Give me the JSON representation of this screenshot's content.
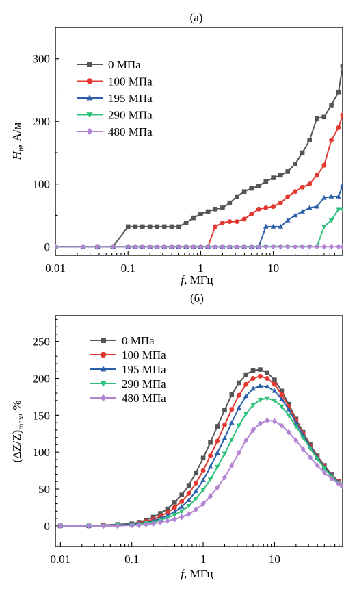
{
  "chart_data": [
    {
      "panel": "(a)",
      "type": "line",
      "xscale": "log",
      "xlim": [
        0.01,
        90
      ],
      "ylim": [
        -14,
        350
      ],
      "xticks": [
        "0.01",
        "0.1",
        "1",
        "10"
      ],
      "yticks": [
        "0",
        "100",
        "200",
        "300"
      ],
      "xlabel": {
        "italic": "f",
        "rest": ", МГц"
      },
      "ylabel": {
        "italic": "H",
        "sub": "p",
        "rest": ", А/м"
      },
      "series": [
        {
          "name": "0 МПа",
          "color": "#555555",
          "marker": "square",
          "x": [
            0.01,
            0.024,
            0.038,
            0.062,
            0.1,
            0.126,
            0.158,
            0.2,
            0.251,
            0.316,
            0.398,
            0.5,
            0.63,
            0.79,
            1.0,
            1.26,
            1.58,
            2.0,
            2.51,
            3.16,
            3.98,
            5.0,
            6.3,
            7.9,
            10,
            12.6,
            15.8,
            20,
            25.1,
            31.6,
            39.8,
            50,
            63,
            79,
            90
          ],
          "y": [
            0,
            0,
            0,
            0,
            32,
            32,
            32,
            32,
            32,
            32,
            32,
            32,
            38,
            46,
            52,
            56,
            60,
            62,
            70,
            80,
            88,
            93,
            97,
            104,
            110,
            114,
            120,
            132,
            150,
            170,
            205,
            207,
            226,
            247,
            288
          ]
        },
        {
          "name": "100 МПа",
          "color": "#e2382f",
          "marker": "circle",
          "x": [
            0.01,
            0.024,
            0.038,
            0.062,
            0.1,
            0.126,
            0.158,
            0.2,
            0.251,
            0.316,
            0.398,
            0.5,
            0.63,
            0.79,
            1.0,
            1.26,
            1.58,
            2.0,
            2.51,
            3.16,
            3.98,
            5.0,
            6.3,
            7.9,
            10,
            12.6,
            15.8,
            20,
            25.1,
            31.6,
            39.8,
            50,
            63,
            79,
            90
          ],
          "y": [
            0,
            0,
            0,
            0,
            0,
            0,
            0,
            0,
            0,
            0,
            0,
            0,
            0,
            0,
            0,
            0,
            32,
            38,
            40,
            40,
            44,
            52,
            60,
            62,
            64,
            70,
            80,
            88,
            95,
            100,
            114,
            130,
            170,
            190,
            210
          ]
        },
        {
          "name": "195 МПа",
          "color": "#2b5faa",
          "marker": "triangle-up",
          "x": [
            0.01,
            0.024,
            0.038,
            0.062,
            0.1,
            0.126,
            0.158,
            0.2,
            0.251,
            0.316,
            0.398,
            0.5,
            0.63,
            0.79,
            1.0,
            1.26,
            1.58,
            2.0,
            2.51,
            3.16,
            3.98,
            5.0,
            6.3,
            7.9,
            10,
            12.6,
            15.8,
            20,
            25.1,
            31.6,
            39.8,
            50,
            63,
            79,
            90
          ],
          "y": [
            0,
            0,
            0,
            0,
            0,
            0,
            0,
            0,
            0,
            0,
            0,
            0,
            0,
            0,
            0,
            0,
            0,
            0,
            0,
            0,
            0,
            0,
            0,
            32,
            32,
            32,
            42,
            50,
            56,
            62,
            64,
            78,
            80,
            80,
            98
          ]
        },
        {
          "name": "290 МПа",
          "color": "#2ec17a",
          "marker": "triangle-down",
          "x": [
            0.01,
            0.024,
            0.038,
            0.062,
            0.1,
            0.126,
            0.158,
            0.2,
            0.251,
            0.316,
            0.398,
            0.5,
            0.63,
            0.79,
            1.0,
            1.26,
            1.58,
            2.0,
            2.51,
            3.16,
            3.98,
            5.0,
            6.3,
            7.9,
            10,
            12.6,
            15.8,
            20,
            25.1,
            31.6,
            39.8,
            50,
            63,
            79,
            90
          ],
          "y": [
            0,
            0,
            0,
            0,
            0,
            0,
            0,
            0,
            0,
            0,
            0,
            0,
            0,
            0,
            0,
            0,
            0,
            0,
            0,
            0,
            0,
            0,
            0,
            0,
            0,
            0,
            0,
            0,
            0,
            0,
            0,
            32,
            42,
            60,
            60
          ]
        },
        {
          "name": "480 МПа",
          "color": "#b383d4",
          "marker": "diamond",
          "x": [
            0.01,
            0.024,
            0.038,
            0.062,
            0.1,
            0.126,
            0.158,
            0.2,
            0.251,
            0.316,
            0.398,
            0.5,
            0.63,
            0.79,
            1.0,
            1.26,
            1.58,
            2.0,
            2.51,
            3.16,
            3.98,
            5.0,
            6.3,
            7.9,
            10,
            12.6,
            15.8,
            20,
            25.1,
            31.6,
            39.8,
            50,
            63,
            79,
            90
          ],
          "y": [
            0,
            0,
            0,
            0,
            0,
            0,
            0,
            0,
            0,
            0,
            0,
            0,
            0,
            0,
            0,
            0,
            0,
            0,
            0,
            0,
            0,
            0,
            0,
            0,
            0,
            0,
            0,
            0,
            0,
            0,
            0,
            0,
            0,
            0,
            0
          ]
        }
      ],
      "legend": "upper-left",
      "grid": false
    },
    {
      "panel": "(б)",
      "type": "line",
      "xscale": "log",
      "xlim": [
        0.0085,
        90
      ],
      "ylim": [
        -28,
        285
      ],
      "xticks": [
        "0.01",
        "0.1",
        "1",
        "10"
      ],
      "yticks": [
        "0",
        "50",
        "100",
        "150",
        "200",
        "250"
      ],
      "xlabel": {
        "italic": "f",
        "rest": ", МГц"
      },
      "ylabel": {
        "text": "(ΔZ/Z)",
        "sub": "max",
        "rest": ", %"
      },
      "series": [
        {
          "name": "0 МПа",
          "color": "#555555",
          "marker": "square",
          "x": [
            0.01,
            0.025,
            0.04,
            0.063,
            0.1,
            0.126,
            0.158,
            0.2,
            0.251,
            0.316,
            0.398,
            0.5,
            0.63,
            0.79,
            1.0,
            1.26,
            1.58,
            2.0,
            2.51,
            3.16,
            3.98,
            5.0,
            6.3,
            7.9,
            10,
            12.6,
            15.8,
            20,
            25.1,
            31.6,
            39.8,
            50,
            63,
            79,
            90
          ],
          "y": [
            0,
            0,
            1,
            2,
            3,
            5,
            8,
            12,
            17,
            23,
            32,
            42,
            55,
            72,
            92,
            113,
            135,
            157,
            178,
            194,
            205,
            211,
            212,
            208,
            198,
            183,
            165,
            145,
            127,
            110,
            95,
            82,
            70,
            60,
            55
          ]
        },
        {
          "name": "100 МПа",
          "color": "#e2382f",
          "marker": "circle",
          "x": [
            0.01,
            0.025,
            0.04,
            0.063,
            0.1,
            0.126,
            0.158,
            0.2,
            0.251,
            0.316,
            0.398,
            0.5,
            0.63,
            0.79,
            1.0,
            1.26,
            1.58,
            2.0,
            2.51,
            3.16,
            3.98,
            5.0,
            6.3,
            7.9,
            10,
            12.6,
            15.8,
            20,
            25.1,
            31.6,
            39.8,
            50,
            63,
            79,
            90
          ],
          "y": [
            0,
            0,
            1,
            1,
            2,
            4,
            6,
            9,
            13,
            18,
            25,
            33,
            44,
            58,
            75,
            95,
            115,
            137,
            158,
            177,
            192,
            200,
            203,
            200,
            192,
            178,
            162,
            143,
            125,
            108,
            93,
            80,
            68,
            60,
            55
          ]
        },
        {
          "name": "195 МПа",
          "color": "#2b5faa",
          "marker": "triangle-up",
          "x": [
            0.01,
            0.025,
            0.04,
            0.063,
            0.1,
            0.126,
            0.158,
            0.2,
            0.251,
            0.316,
            0.398,
            0.5,
            0.63,
            0.79,
            1.0,
            1.26,
            1.58,
            2.0,
            2.51,
            3.16,
            3.98,
            5.0,
            6.3,
            7.9,
            10,
            12.6,
            15.8,
            20,
            25.1,
            31.6,
            39.8,
            50,
            63,
            79,
            90
          ],
          "y": [
            0,
            0,
            1,
            1,
            2,
            3,
            5,
            7,
            10,
            14,
            19,
            26,
            35,
            47,
            62,
            80,
            99,
            119,
            140,
            160,
            176,
            186,
            190,
            189,
            183,
            172,
            158,
            140,
            123,
            107,
            92,
            79,
            68,
            59,
            55
          ]
        },
        {
          "name": "290 МПа",
          "color": "#2ec17a",
          "marker": "triangle-down",
          "x": [
            0.01,
            0.025,
            0.04,
            0.063,
            0.1,
            0.126,
            0.158,
            0.2,
            0.251,
            0.316,
            0.398,
            0.5,
            0.63,
            0.79,
            1.0,
            1.26,
            1.58,
            2.0,
            2.51,
            3.16,
            3.98,
            5.0,
            6.3,
            7.9,
            10,
            12.6,
            15.8,
            20,
            25.1,
            31.6,
            39.8,
            50,
            63,
            79,
            90
          ],
          "y": [
            0,
            0,
            0,
            1,
            1,
            2,
            4,
            5,
            8,
            11,
            15,
            20,
            27,
            37,
            49,
            63,
            80,
            98,
            117,
            136,
            152,
            164,
            171,
            173,
            170,
            162,
            150,
            135,
            120,
            105,
            91,
            78,
            67,
            58,
            54
          ]
        },
        {
          "name": "480 МПа",
          "color": "#b383d4",
          "marker": "diamond",
          "x": [
            0.01,
            0.025,
            0.04,
            0.063,
            0.1,
            0.126,
            0.158,
            0.2,
            0.251,
            0.316,
            0.398,
            0.5,
            0.63,
            0.79,
            1.0,
            1.26,
            1.58,
            2.0,
            2.51,
            3.16,
            3.98,
            5.0,
            6.3,
            7.9,
            10,
            12.6,
            15.8,
            20,
            25.1,
            31.6,
            39.8,
            50,
            63,
            79,
            90
          ],
          "y": [
            0,
            0,
            0,
            0,
            1,
            1,
            2,
            3,
            5,
            7,
            9,
            12,
            16,
            22,
            30,
            40,
            52,
            66,
            82,
            99,
            116,
            130,
            139,
            143,
            142,
            136,
            127,
            116,
            104,
            93,
            82,
            72,
            64,
            57,
            54
          ]
        }
      ],
      "legend": "upper-left",
      "grid": false
    }
  ]
}
